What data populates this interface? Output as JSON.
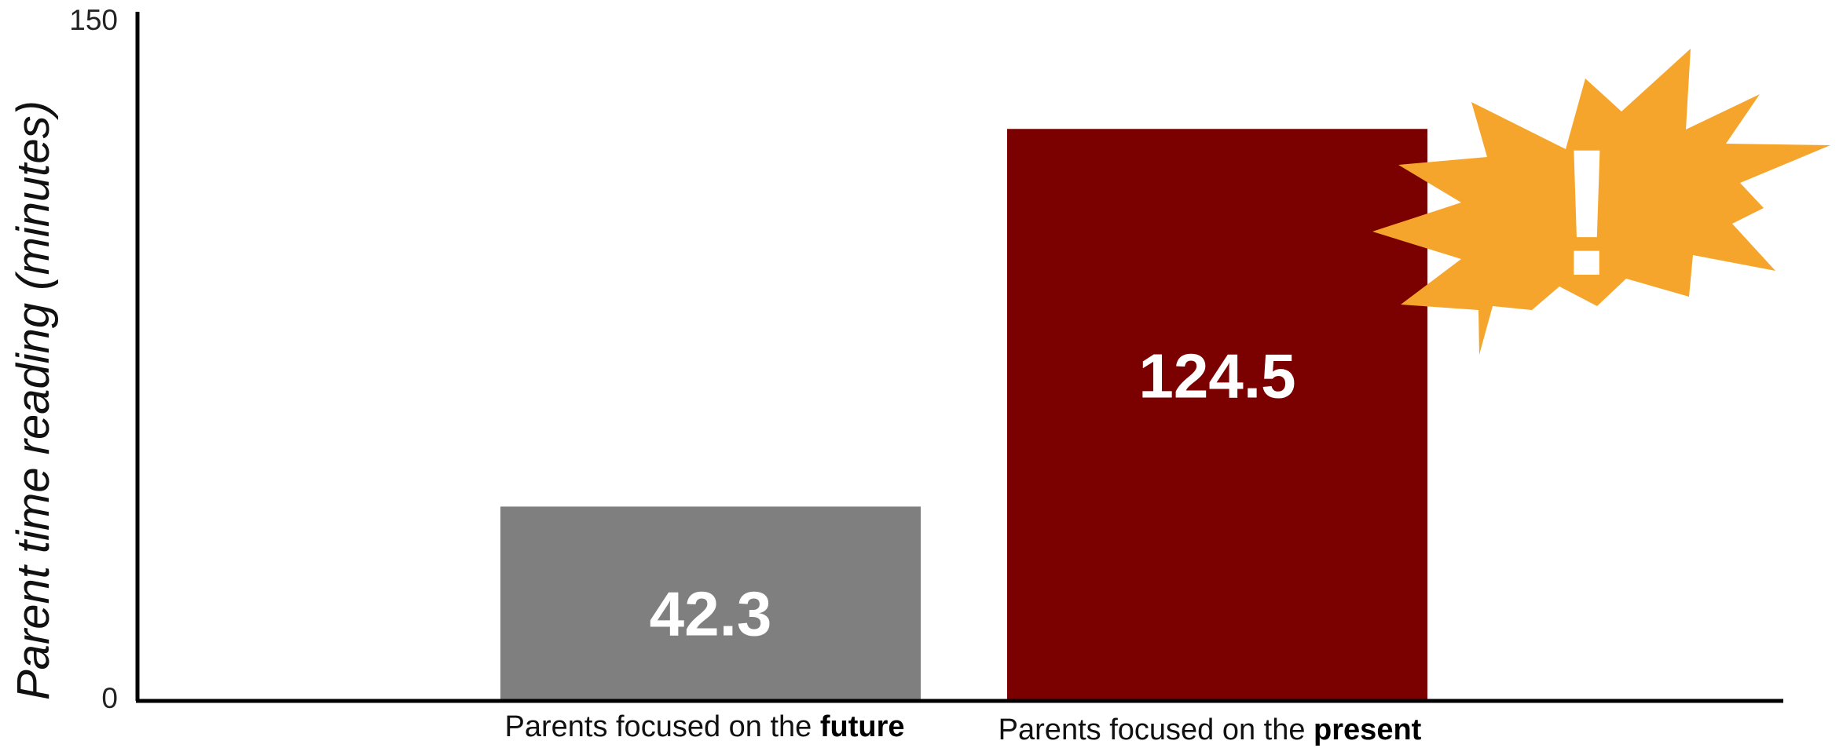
{
  "chart_data": {
    "type": "bar",
    "ylabel": "Parent time reading (minutes)",
    "ylim": [
      0,
      150
    ],
    "y_ticks": [
      "0",
      "150"
    ],
    "categories": [
      {
        "prefix": "Parents focused on the ",
        "emphasis": "future"
      },
      {
        "prefix": "Parents focused on the ",
        "emphasis": "present"
      }
    ],
    "values": [
      42.3,
      124.5
    ],
    "value_labels": [
      "42.3",
      "124.5"
    ],
    "bar_colors": [
      "#7f7f7f",
      "#7b0000"
    ],
    "grid": false,
    "annotation": {
      "text": "!",
      "shape": "starburst-icon",
      "color": "#f5a52c"
    }
  }
}
